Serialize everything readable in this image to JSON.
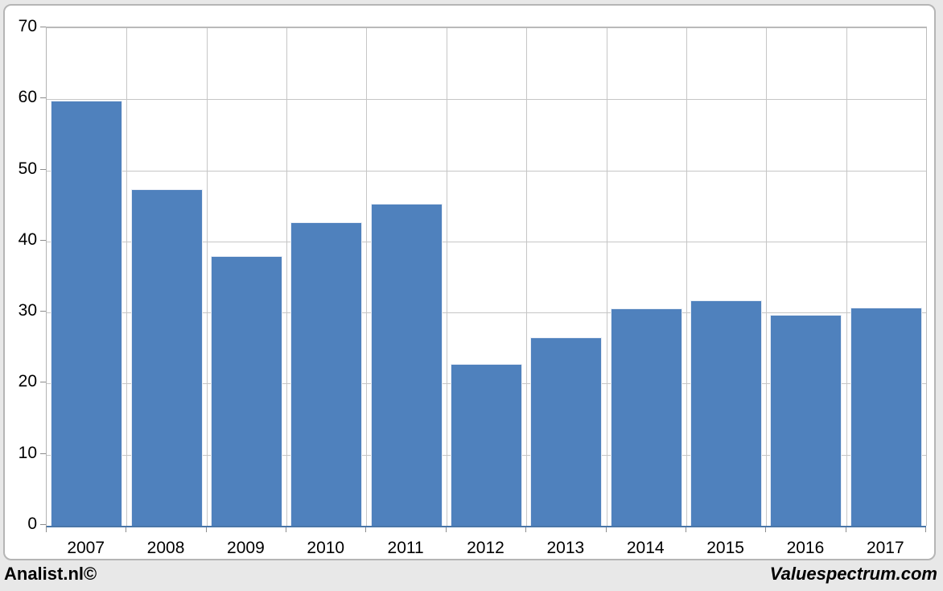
{
  "chart_data": {
    "type": "bar",
    "title": "",
    "xlabel": "",
    "ylabel": "",
    "categories": [
      "2007",
      "2008",
      "2009",
      "2010",
      "2011",
      "2012",
      "2013",
      "2014",
      "2015",
      "2016",
      "2017"
    ],
    "values": [
      59.8,
      47.4,
      38.0,
      42.7,
      45.3,
      22.8,
      26.5,
      30.6,
      31.7,
      29.7,
      30.7
    ],
    "ylim": [
      0,
      70
    ],
    "ytick_step": 10,
    "ytick_labels": [
      "0",
      "10",
      "20",
      "30",
      "40",
      "50",
      "60",
      "70"
    ],
    "grid": {
      "horizontal": true,
      "vertical": true
    },
    "legend": "none",
    "bar_color": "#4F81BD"
  },
  "footer": {
    "left": "Analist.nl©",
    "right": "Valuespectrum.com"
  },
  "colors": {
    "page_background": "#E8E8E8",
    "plot_background": "#FFFFFF",
    "card_border": "#B5B5B5",
    "gridline": "#C6C6C6",
    "x_axis_line": "#4A76A8",
    "bar": "#4F81BD",
    "text": "#000000"
  }
}
